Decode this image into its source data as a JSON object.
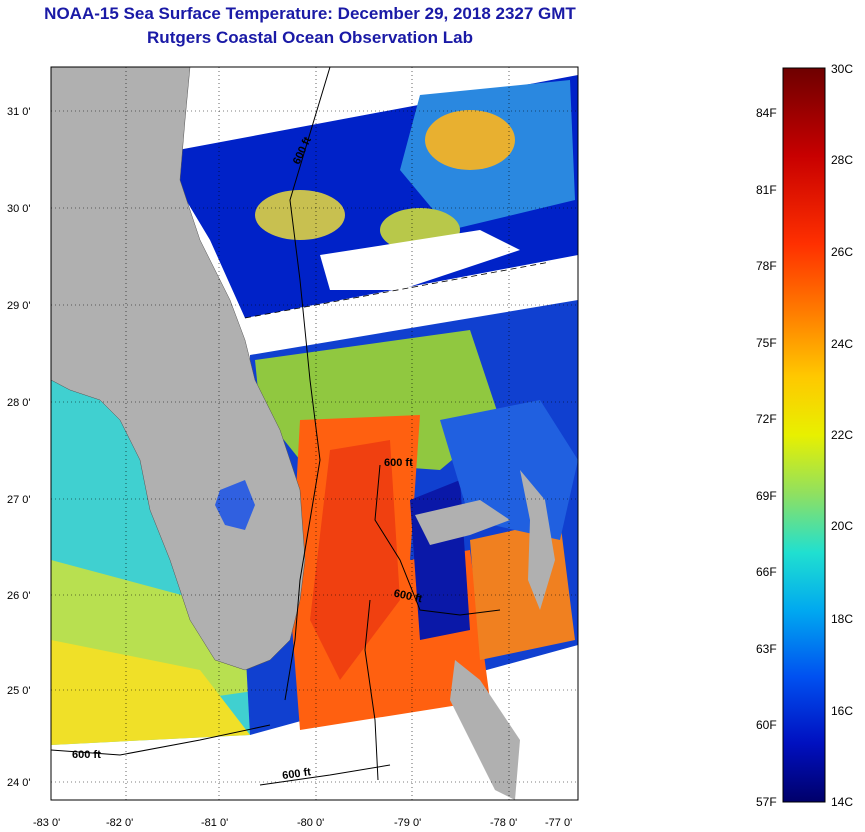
{
  "title": "NOAA-15 Sea Surface Temperature:  December 29, 2018 2327 GMT",
  "subtitle": "Rutgers Coastal Ocean Observation Lab",
  "axes": {
    "lat_labels": [
      "31 0'",
      "30 0'",
      "29 0'",
      "28 0'",
      "27 0'",
      "26 0'",
      "25 0'",
      "24 0'"
    ],
    "lon_labels": [
      "-83 0'",
      "-82 0'",
      "-81 0'",
      "-80 0'",
      "-79 0'",
      "-78 0'",
      "-77 0'"
    ]
  },
  "contour_labels": [
    "600 ft",
    "600 ft",
    "600 ft",
    "600 ft",
    "600 ft"
  ],
  "colorbar": {
    "fahrenheit": [
      "84F",
      "81F",
      "78F",
      "75F",
      "72F",
      "69F",
      "66F",
      "63F",
      "60F",
      "57F"
    ],
    "celsius": [
      "30C",
      "28C",
      "26C",
      "24C",
      "22C",
      "20C",
      "18C",
      "16C",
      "14C"
    ],
    "colors": [
      "#7a0000",
      "#c80000",
      "#ff3000",
      "#ff7a00",
      "#ffc000",
      "#f0f000",
      "#a8e04a",
      "#50d8a0",
      "#00d8e0",
      "#00a8f0",
      "#0070f0",
      "#0030e0",
      "#0000a8",
      "#00006e"
    ]
  },
  "colors": {
    "land": "#b0b0b0",
    "title": "#1a1aa6"
  }
}
